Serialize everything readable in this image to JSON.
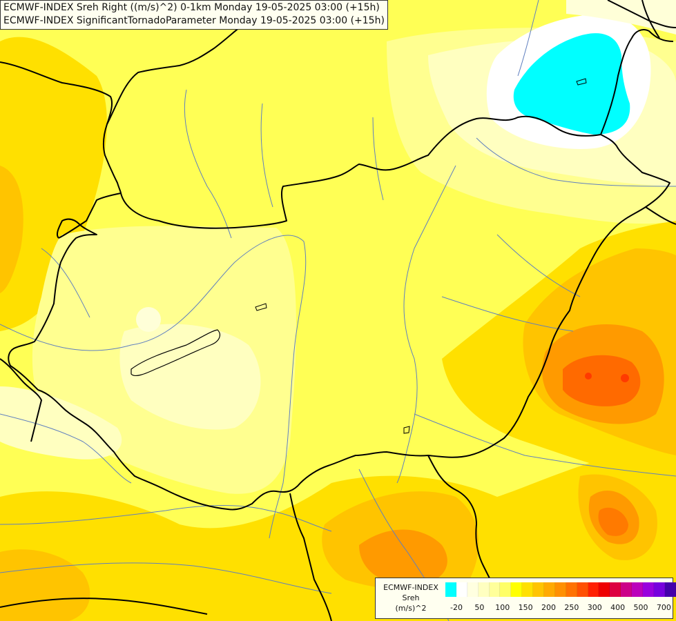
{
  "header": {
    "line1": "ECMWF-INDEX Sreh Right ((m/s)^2) 0-1km Monday 19-05-2025 03:00 (+15h)",
    "line2": "ECMWF-INDEX SignificantTornadoParameter Monday 19-05-2025 03:00 (+15h)"
  },
  "legend": {
    "line1": "ECMWF-INDEX",
    "line2": "Sreh",
    "line3": "(m/s)^2",
    "colors": [
      "#00ffff",
      "#ffffff",
      "#ffffe0",
      "#ffffc0",
      "#ffff9a",
      "#ffff66",
      "#ffff00",
      "#ffe000",
      "#ffc400",
      "#ffaa00",
      "#ff9000",
      "#ff7200",
      "#ff5000",
      "#ff2000",
      "#ee0000",
      "#dd0040",
      "#cc0088",
      "#bb00bb",
      "#9900dd",
      "#7700dd",
      "#4400aa",
      "#000088"
    ],
    "ticks": [
      "-20",
      "50",
      "100",
      "150",
      "200",
      "250",
      "300",
      "400",
      "500",
      "700"
    ]
  },
  "colors": {
    "cyan": "#00ffff",
    "white": "#ffffff",
    "cream": "#ffffc0",
    "pale_yellow": "#ffff9a",
    "yellow": "#ffff00",
    "gold": "#ffe000",
    "light_orange": "#ffc400",
    "orange": "#ffaa00",
    "dark_orange": "#ff8000",
    "red_orange": "#ff5000",
    "border": "#000000",
    "river": "#5f7fbf"
  }
}
